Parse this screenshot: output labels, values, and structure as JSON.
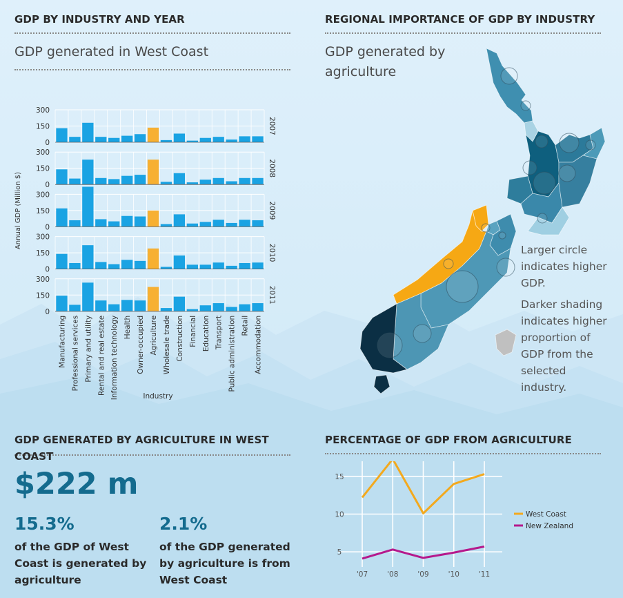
{
  "colors": {
    "bar": "#1aa3e3",
    "highlight": "#f7b032",
    "west_coast": "#f3a91e",
    "new_zealand": "#b5198c",
    "accent": "#146b8e"
  },
  "sections": {
    "gdp_by_industry": {
      "title": "GDP BY INDUSTRY AND YEAR",
      "subtitle": "GDP generated in West Coast"
    },
    "regional": {
      "title": "REGIONAL IMPORTANCE OF GDP BY INDUSTRY",
      "subtitle_line1": "GDP generated by",
      "subtitle_line2": "agriculture"
    },
    "agri_west_coast": {
      "title_line1": "GDP GENERATED BY AGRICULTURE IN WEST",
      "title_line2": "COAST",
      "amount": "$222 m",
      "stat1": {
        "value": "15.3%",
        "line1": "of the GDP of West",
        "line2": "Coast is generated by",
        "line3": "agriculture"
      },
      "stat2": {
        "value": "2.1%",
        "line1": "of the GDP generated",
        "line2": "by agriculture is from",
        "line3": "West Coast"
      }
    },
    "pct_agri": {
      "title": "PERCENTAGE OF GDP FROM AGRICULTURE"
    }
  },
  "map_notes": {
    "circle": [
      "Larger circle",
      "indicates higher",
      "GDP."
    ],
    "shading": [
      "Darker shading",
      "indicates higher",
      "proportion of",
      "GDP from the",
      "selected",
      "industry."
    ]
  },
  "chart_data": [
    {
      "type": "bar",
      "xlabel": "Industry",
      "ylabel": "Annual GDP (Million $)",
      "ylim": [
        0,
        300
      ],
      "yticks": [
        "0",
        "150",
        "300"
      ],
      "highlight": "Agriculture",
      "categories": [
        "Manufacturing",
        "Professional services",
        "Primary and utility",
        "Rental and real estate",
        "Information technology",
        "Health",
        "Owner-occupied",
        "Agriculture",
        "Wholesale trade",
        "Construction",
        "Financial",
        "Education",
        "Transport",
        "Public administration",
        "Retail",
        "Accommodation"
      ],
      "series": [
        {
          "name": "2007",
          "values": [
            130,
            50,
            180,
            50,
            40,
            60,
            75,
            135,
            20,
            80,
            15,
            40,
            50,
            25,
            55,
            55
          ]
        },
        {
          "name": "2008",
          "values": [
            140,
            55,
            230,
            60,
            50,
            80,
            90,
            230,
            25,
            105,
            20,
            45,
            60,
            30,
            60,
            60
          ]
        },
        {
          "name": "2009",
          "values": [
            170,
            60,
            370,
            70,
            50,
            100,
            95,
            150,
            25,
            115,
            30,
            45,
            65,
            35,
            65,
            60
          ]
        },
        {
          "name": "2010",
          "values": [
            140,
            55,
            220,
            65,
            45,
            85,
            75,
            190,
            20,
            125,
            40,
            40,
            60,
            30,
            55,
            60
          ]
        },
        {
          "name": "2011",
          "values": [
            145,
            60,
            265,
            100,
            65,
            105,
            100,
            225,
            30,
            135,
            20,
            55,
            75,
            40,
            65,
            75
          ]
        }
      ]
    },
    {
      "type": "line",
      "x": [
        "'07",
        "'08",
        "'09",
        "'10",
        "'11"
      ],
      "ylim": [
        3,
        17
      ],
      "yticks": [
        "5",
        "10",
        "15"
      ],
      "legend": "right",
      "series": [
        {
          "name": "West Coast",
          "values": [
            12.2,
            17.3,
            10.1,
            14.0,
            15.3
          ]
        },
        {
          "name": "New Zealand",
          "values": [
            4.1,
            5.3,
            4.2,
            4.9,
            5.7
          ]
        }
      ]
    }
  ]
}
